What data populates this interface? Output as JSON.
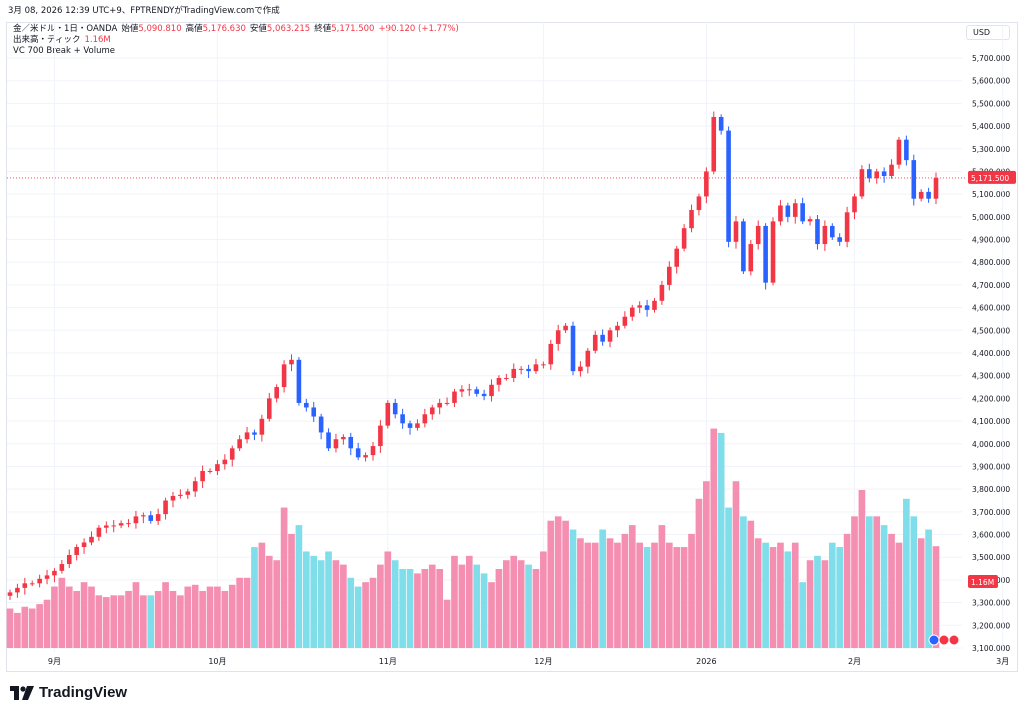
{
  "caption": "3月 08, 2026 12:39 UTC+9、FPTRENDYがTradingView.comで作成",
  "legend": {
    "symbol": "金／米ドル・1日・OANDA",
    "open_label": "始値",
    "open": "5,090.810",
    "high_label": "高値",
    "high": "5,176.630",
    "low_label": "安値",
    "low": "5,063.215",
    "close_label": "終値",
    "close": "5,171.500",
    "change": "+90.120 (+1.77%)",
    "volume_label": "出来高・ティック",
    "volume": "1.16M",
    "indicator": "VC 700 Break + Volume"
  },
  "currency": "USD",
  "brand": "TradingView",
  "colors": {
    "up": "#f23645",
    "down": "#2962ff",
    "vol_up": "#f48fb1",
    "vol_down": "#80deea",
    "grid": "#f0f3fa",
    "axis_text": "#131722"
  },
  "chart_data": {
    "type": "candlestick",
    "title": "金／米ドル・1日・OANDA",
    "ylim": [
      3100,
      5800
    ],
    "yticks": [
      3100,
      3200,
      3300,
      3400,
      3500,
      3600,
      3700,
      3800,
      3900,
      4000,
      4100,
      4200,
      4300,
      4400,
      4500,
      4600,
      4700,
      4800,
      4900,
      5000,
      5100,
      5200,
      5300,
      5400,
      5500,
      5600,
      5700
    ],
    "ytick_labels": [
      "3,100.000",
      "3,200.000",
      "3,300.000",
      "3,400.000",
      "3,500.000",
      "3,600.000",
      "3,700.000",
      "3,800.000",
      "3,900.000",
      "4,000.000",
      "4,100.000",
      "4,200.000",
      "4,300.000",
      "4,400.000",
      "4,500.000",
      "4,600.000",
      "4,700.000",
      "4,800.000",
      "4,900.000",
      "5,000.000",
      "5,100.000",
      "5,200.000",
      "5,300.000",
      "5,400.000",
      "5,500.000",
      "5,600.000",
      "5,700.000"
    ],
    "xticks": [
      {
        "label": "9月",
        "index": 6
      },
      {
        "label": "10月",
        "index": 28
      },
      {
        "label": "11月",
        "index": 51
      },
      {
        "label": "12月",
        "index": 72
      },
      {
        "label": "2026",
        "index": 94
      },
      {
        "label": "2月",
        "index": 114
      },
      {
        "label": "3月",
        "index": 134
      }
    ],
    "last_price": 5171.5,
    "last_price_label": "5,171.500",
    "volume_label_right": "1.16M",
    "vol_max": 1.8,
    "closes": [
      3345,
      3365,
      3385,
      3385,
      3405,
      3420,
      3440,
      3470,
      3510,
      3545,
      3565,
      3590,
      3630,
      3640,
      3640,
      3650,
      3650,
      3680,
      3685,
      3660,
      3690,
      3750,
      3770,
      3775,
      3790,
      3835,
      3880,
      3880,
      3910,
      3930,
      3980,
      4020,
      4050,
      4040,
      4110,
      4200,
      4250,
      4350,
      4370,
      4180,
      4160,
      4120,
      4050,
      3980,
      4020,
      4030,
      3980,
      3940,
      3950,
      3990,
      4080,
      4180,
      4130,
      4090,
      4070,
      4090,
      4130,
      4160,
      4180,
      4180,
      4230,
      4240,
      4240,
      4220,
      4210,
      4260,
      4290,
      4290,
      4330,
      4330,
      4320,
      4350,
      4350,
      4440,
      4500,
      4520,
      4320,
      4340,
      4410,
      4480,
      4450,
      4500,
      4520,
      4560,
      4600,
      4610,
      4590,
      4630,
      4700,
      4780,
      4860,
      4950,
      5030,
      5090,
      5200,
      5440,
      5380,
      4890,
      4980,
      4760,
      4880,
      4960,
      4710,
      4980,
      5050,
      5000,
      5060,
      4980,
      4990,
      4880,
      4960,
      4910,
      4890,
      5020,
      5090,
      5210,
      5170,
      5200,
      5180,
      5230,
      5340,
      5250,
      5080,
      5110,
      5080,
      5171.5
    ],
    "volumes": [
      0.45,
      0.4,
      0.47,
      0.45,
      0.5,
      0.55,
      0.7,
      0.8,
      0.7,
      0.65,
      0.75,
      0.7,
      0.6,
      0.58,
      0.6,
      0.6,
      0.65,
      0.75,
      0.6,
      0.6,
      0.65,
      0.75,
      0.65,
      0.6,
      0.7,
      0.72,
      0.65,
      0.7,
      0.7,
      0.65,
      0.72,
      0.8,
      0.8,
      1.15,
      1.2,
      1.05,
      1.0,
      1.6,
      1.3,
      1.4,
      1.1,
      1.05,
      1.0,
      1.1,
      1.0,
      0.95,
      0.8,
      0.7,
      0.75,
      0.8,
      0.95,
      1.1,
      1.0,
      0.9,
      0.9,
      0.85,
      0.9,
      0.95,
      0.9,
      0.55,
      1.05,
      0.95,
      1.05,
      0.95,
      0.85,
      0.75,
      0.9,
      1.0,
      1.05,
      1.0,
      0.95,
      0.9,
      1.1,
      1.45,
      1.5,
      1.45,
      1.35,
      1.25,
      1.2,
      1.2,
      1.35,
      1.25,
      1.2,
      1.3,
      1.4,
      1.2,
      1.15,
      1.2,
      1.4,
      1.2,
      1.15,
      1.15,
      1.3,
      1.7,
      1.9,
      2.5,
      2.45,
      1.6,
      1.9,
      1.5,
      1.45,
      1.25,
      1.2,
      1.15,
      1.2,
      1.1,
      1.2,
      0.75,
      1.0,
      1.05,
      1.0,
      1.2,
      1.15,
      1.3,
      1.5,
      1.8,
      1.5,
      1.5,
      1.4,
      1.3,
      1.2,
      1.7,
      1.5,
      1.25,
      1.35,
      1.16
    ]
  }
}
